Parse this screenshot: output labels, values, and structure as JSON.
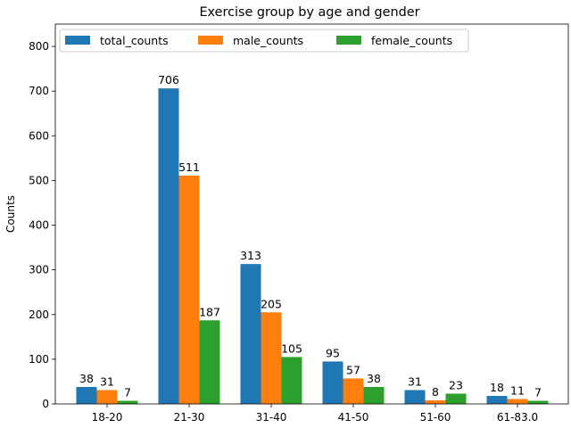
{
  "chart_data": {
    "type": "bar",
    "title": "Exercise group by age and gender",
    "xlabel": "",
    "ylabel": "Counts",
    "categories": [
      "18-20",
      "21-30",
      "31-40",
      "41-50",
      "51-60",
      "61-83.0"
    ],
    "series": [
      {
        "name": "total_counts",
        "values": [
          38,
          706,
          313,
          95,
          31,
          18
        ],
        "color": "#1f77b4"
      },
      {
        "name": "male_counts",
        "values": [
          31,
          511,
          205,
          57,
          8,
          11
        ],
        "color": "#ff7f0e"
      },
      {
        "name": "female_counts",
        "values": [
          7,
          187,
          105,
          38,
          23,
          7
        ],
        "color": "#2ca02c"
      }
    ],
    "ylim": [
      0,
      850
    ],
    "yticks": [
      0,
      100,
      200,
      300,
      400,
      500,
      600,
      700,
      800
    ],
    "grid": false,
    "legend_position": "top-left"
  }
}
